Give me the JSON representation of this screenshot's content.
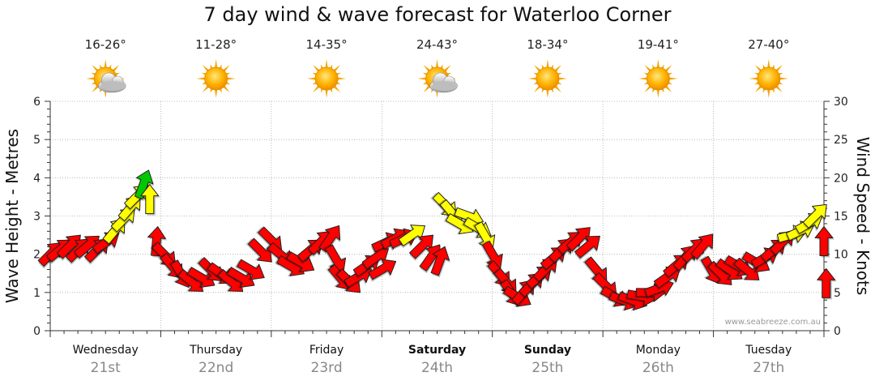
{
  "title": "7 day wind & wave forecast for Waterloo Corner",
  "watermark": "www.seabreeze.com.au",
  "days": [
    {
      "name": "Wednesday",
      "date": "21st",
      "temp": "16-26°",
      "icon": "partly-cloudy-icon",
      "bold": false
    },
    {
      "name": "Thursday",
      "date": "22nd",
      "temp": "11-28°",
      "icon": "sunny-icon",
      "bold": false
    },
    {
      "name": "Friday",
      "date": "23rd",
      "temp": "14-35°",
      "icon": "sunny-icon",
      "bold": false
    },
    {
      "name": "Saturday",
      "date": "24th",
      "temp": "24-43°",
      "icon": "partly-cloudy-icon",
      "bold": true
    },
    {
      "name": "Sunday",
      "date": "25th",
      "temp": "18-34°",
      "icon": "sunny-icon",
      "bold": true
    },
    {
      "name": "Monday",
      "date": "26th",
      "temp": "19-41°",
      "icon": "sunny-icon",
      "bold": false
    },
    {
      "name": "Tuesday",
      "date": "27th",
      "temp": "27-40°",
      "icon": "sunny-icon",
      "bold": false
    }
  ],
  "colors": {
    "low": "#ff0000",
    "mid": "#ffff00",
    "high": "#00c800",
    "grid": "#999999",
    "text_date": "#888888"
  },
  "chart_data": {
    "type": "line",
    "title": "7 day wind & wave forecast for Waterloo Corner",
    "ylabel_left": "Wave Height - Metres",
    "ylabel_right": "Wind Speed - Knots",
    "ylim_left": [
      0,
      6
    ],
    "ylim_right": [
      0,
      30
    ],
    "left_ticks": [
      0,
      1,
      2,
      3,
      4,
      5,
      6
    ],
    "right_ticks": [
      0,
      5,
      10,
      15,
      20,
      25,
      30
    ],
    "x_unit": "days from start of Wednesday",
    "xlim": [
      0,
      7
    ],
    "series": [
      {
        "name": "Wind Speed (knots)",
        "points": [
          [
            0.0,
            10.0,
            225
          ],
          [
            0.08,
            10.5,
            230
          ],
          [
            0.17,
            11.0,
            225
          ],
          [
            0.25,
            10.5,
            225
          ],
          [
            0.33,
            11.0,
            230
          ],
          [
            0.42,
            10.5,
            225
          ],
          [
            0.5,
            11.5,
            235
          ],
          [
            0.58,
            13.0,
            220
          ],
          [
            0.66,
            14.5,
            225
          ],
          [
            0.72,
            16.0,
            220
          ],
          [
            0.78,
            17.5,
            225
          ],
          [
            0.84,
            19.0,
            200
          ],
          [
            0.9,
            17.0,
            180
          ],
          [
            0.96,
            11.5,
            185
          ],
          [
            1.03,
            10.0,
            315
          ],
          [
            1.1,
            8.5,
            320
          ],
          [
            1.18,
            7.5,
            330
          ],
          [
            1.27,
            6.5,
            310
          ],
          [
            1.36,
            7.0,
            300
          ],
          [
            1.45,
            8.0,
            315
          ],
          [
            1.54,
            7.5,
            305
          ],
          [
            1.63,
            6.5,
            310
          ],
          [
            1.72,
            7.0,
            300
          ],
          [
            1.81,
            8.0,
            300
          ],
          [
            1.9,
            10.5,
            315
          ],
          [
            1.99,
            12.0,
            315
          ],
          [
            2.08,
            10.0,
            310
          ],
          [
            2.17,
            8.5,
            300
          ],
          [
            2.26,
            9.0,
            300
          ],
          [
            2.35,
            10.5,
            230
          ],
          [
            2.44,
            11.5,
            225
          ],
          [
            2.53,
            12.0,
            215
          ],
          [
            2.58,
            9.5,
            330
          ],
          [
            2.62,
            7.0,
            320
          ],
          [
            2.7,
            6.5,
            315
          ],
          [
            2.78,
            7.0,
            240
          ],
          [
            2.86,
            8.5,
            235
          ],
          [
            2.94,
            9.5,
            235
          ],
          [
            3.0,
            8.0,
            240
          ],
          [
            3.03,
            11.5,
            245
          ],
          [
            3.11,
            12.0,
            240
          ],
          [
            3.19,
            12.0,
            245
          ],
          [
            3.27,
            12.5,
            235
          ],
          [
            3.36,
            11.0,
            225
          ],
          [
            3.44,
            9.5,
            215
          ],
          [
            3.52,
            9.0,
            200
          ],
          [
            3.57,
            16.5,
            315
          ],
          [
            3.63,
            15.5,
            320
          ],
          [
            3.7,
            14.0,
            300
          ],
          [
            3.78,
            15.0,
            290
          ],
          [
            3.86,
            13.5,
            300
          ],
          [
            3.93,
            12.5,
            330
          ],
          [
            4.0,
            10.0,
            330
          ],
          [
            4.06,
            7.5,
            320
          ],
          [
            4.12,
            6.5,
            320
          ],
          [
            4.17,
            5.0,
            325
          ],
          [
            4.22,
            4.5,
            300
          ],
          [
            4.28,
            5.0,
            220
          ],
          [
            4.35,
            6.0,
            225
          ],
          [
            4.42,
            7.0,
            230
          ],
          [
            4.48,
            8.0,
            225
          ],
          [
            4.55,
            9.5,
            230
          ],
          [
            4.62,
            10.5,
            225
          ],
          [
            4.7,
            11.5,
            230
          ],
          [
            4.78,
            12.0,
            225
          ],
          [
            4.86,
            11.0,
            230
          ],
          [
            4.94,
            8.0,
            320
          ],
          [
            5.02,
            6.0,
            315
          ],
          [
            5.1,
            4.5,
            300
          ],
          [
            5.18,
            4.0,
            290
          ],
          [
            5.26,
            4.0,
            290
          ],
          [
            5.34,
            4.5,
            280
          ],
          [
            5.42,
            5.0,
            270
          ],
          [
            5.5,
            5.5,
            250
          ],
          [
            5.58,
            7.0,
            235
          ],
          [
            5.66,
            8.5,
            230
          ],
          [
            5.74,
            9.5,
            220
          ],
          [
            5.82,
            10.5,
            225
          ],
          [
            5.9,
            11.0,
            220
          ],
          [
            5.98,
            8.0,
            330
          ],
          [
            6.06,
            7.5,
            315
          ],
          [
            6.14,
            8.0,
            305
          ],
          [
            6.22,
            8.5,
            300
          ],
          [
            6.3,
            8.0,
            310
          ],
          [
            6.38,
            9.0,
            300
          ],
          [
            6.46,
            9.5,
            240
          ],
          [
            6.54,
            10.5,
            230
          ],
          [
            6.62,
            11.5,
            225
          ],
          [
            6.7,
            12.5,
            255
          ],
          [
            6.78,
            13.0,
            245
          ],
          [
            6.86,
            14.0,
            240
          ],
          [
            6.92,
            15.0,
            225
          ],
          [
            7.0,
            11.5,
            180
          ],
          [
            7.02,
            6.0,
            180
          ]
        ]
      }
    ]
  }
}
